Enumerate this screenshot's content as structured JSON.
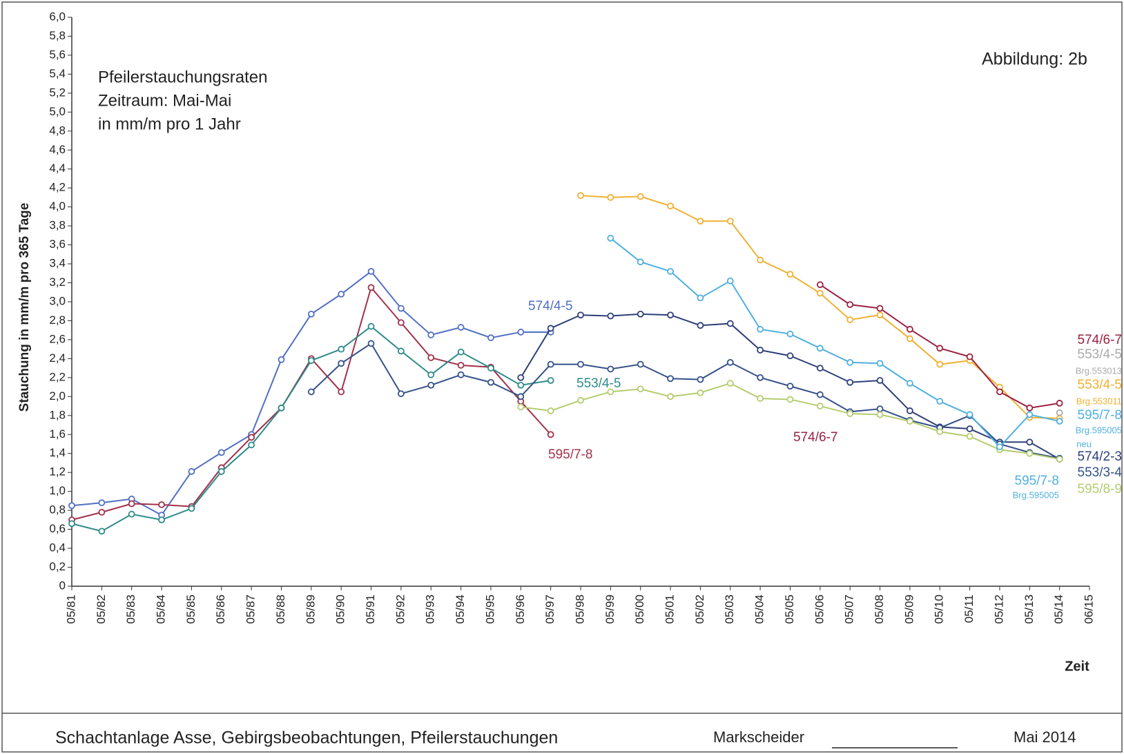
{
  "chart_data": {
    "type": "line",
    "title_lines": [
      "Pfeilerstauchungsraten",
      "Zeitraum: Mai-Mai",
      "in mm/m pro 1 Jahr"
    ],
    "figure_label": "Abbildung:  2b",
    "y_label": "Stauchung in mm/m pro 365 Tage",
    "x_label": "Zeit",
    "categories": [
      "05/81",
      "05/82",
      "05/83",
      "05/84",
      "05/85",
      "05/86",
      "05/87",
      "05/88",
      "05/89",
      "05/90",
      "05/91",
      "05/92",
      "05/93",
      "05/94",
      "05/95",
      "05/96",
      "05/97",
      "05/98",
      "05/99",
      "05/00",
      "05/01",
      "05/02",
      "05/03",
      "05/04",
      "05/05",
      "05/06",
      "05/07",
      "05/08",
      "05/09",
      "05/10",
      "05/11",
      "05/12",
      "05/13",
      "05/14",
      "06/15"
    ],
    "ylim": [
      0,
      6
    ],
    "yticks": [
      0,
      {
        "value": 0.2,
        "label": "0,2"
      },
      {
        "value": 0.4,
        "label": "0,4"
      },
      {
        "value": 0.6,
        "label": "0,6"
      },
      {
        "value": 0.8,
        "label": "0,8"
      },
      {
        "value": 1.0,
        "label": "1,0"
      },
      {
        "value": 1.2,
        "label": "1,2"
      },
      {
        "value": 1.4,
        "label": "1,4"
      },
      {
        "value": 1.6,
        "label": "1,6"
      },
      {
        "value": 1.8,
        "label": "1,8"
      },
      {
        "value": 2.0,
        "label": "2,0"
      },
      {
        "value": 2.2,
        "label": "2,2"
      },
      {
        "value": 2.4,
        "label": "2,4"
      },
      {
        "value": 2.6,
        "label": "2,6"
      },
      {
        "value": 2.8,
        "label": "2,8"
      },
      {
        "value": 3.0,
        "label": "3,0"
      },
      {
        "value": 3.2,
        "label": "3,2"
      },
      {
        "value": 3.4,
        "label": "3,4"
      },
      {
        "value": 3.6,
        "label": "3,6"
      },
      {
        "value": 3.8,
        "label": "3,8"
      },
      {
        "value": 4.0,
        "label": "4,0"
      },
      {
        "value": 4.2,
        "label": "4,2"
      },
      {
        "value": 4.4,
        "label": "4,4"
      },
      {
        "value": 4.6,
        "label": "4,6"
      },
      {
        "value": 4.8,
        "label": "4,8"
      },
      {
        "value": 5.0,
        "label": "5,0"
      },
      {
        "value": 5.2,
        "label": "5,2"
      },
      {
        "value": 5.4,
        "label": "5,4"
      },
      {
        "value": 5.6,
        "label": "5,6"
      },
      {
        "value": 5.8,
        "label": "5,8"
      },
      {
        "value": 6.0,
        "label": "6,0"
      }
    ],
    "series": [
      {
        "color": "#4f6fc4",
        "values": [
          0.85,
          0.88,
          0.92,
          0.75,
          1.21,
          1.41,
          1.6,
          2.39,
          2.87,
          3.08,
          3.32,
          2.93,
          2.65,
          2.73,
          2.62,
          2.68,
          2.68,
          null,
          null,
          null,
          null,
          null,
          null,
          null,
          null,
          null,
          null,
          null,
          null,
          null,
          null,
          null,
          null,
          null,
          null
        ]
      },
      {
        "color": "#a0304a",
        "values": [
          0.7,
          0.78,
          0.87,
          0.86,
          0.84,
          1.25,
          1.57,
          1.88,
          2.4,
          2.05,
          3.15,
          2.78,
          2.41,
          2.33,
          2.31,
          1.95,
          1.6,
          null,
          null,
          null,
          null,
          null,
          null,
          null,
          null,
          null,
          null,
          null,
          null,
          null,
          null,
          null,
          null,
          null,
          null
        ]
      },
      {
        "color": "#2e8a8a",
        "values": [
          0.66,
          0.58,
          0.76,
          0.7,
          0.82,
          1.21,
          1.49,
          1.88,
          2.38,
          2.5,
          2.74,
          2.48,
          2.23,
          2.47,
          2.3,
          2.12,
          2.17,
          null,
          null,
          null,
          null,
          null,
          null,
          null,
          null,
          null,
          null,
          null,
          null,
          null,
          null,
          null,
          null,
          null,
          null
        ]
      },
      {
        "color": "#2e3f78",
        "values": [
          null,
          null,
          null,
          null,
          null,
          null,
          null,
          null,
          null,
          null,
          null,
          null,
          null,
          null,
          null,
          2.2,
          2.72,
          2.86,
          2.85,
          2.87,
          2.86,
          2.75,
          2.77,
          2.49,
          2.43,
          2.3,
          2.15,
          2.17,
          1.85,
          1.68,
          1.66,
          1.52,
          1.52,
          1.34,
          null
        ]
      },
      {
        "color": "#33508a",
        "values": [
          null,
          null,
          null,
          null,
          null,
          null,
          null,
          null,
          2.05,
          2.35,
          2.56,
          2.03,
          2.12,
          2.23,
          2.15,
          2.0,
          2.34,
          2.34,
          2.29,
          2.34,
          2.19,
          2.18,
          2.36,
          2.2,
          2.11,
          2.02,
          1.84,
          1.87,
          1.75,
          1.67,
          1.8,
          1.5,
          1.41,
          1.35,
          null
        ]
      },
      {
        "color": "#b4cc6e",
        "values": [
          null,
          null,
          null,
          null,
          null,
          null,
          null,
          null,
          null,
          null,
          null,
          null,
          null,
          null,
          null,
          1.89,
          1.85,
          1.96,
          2.05,
          2.08,
          2.0,
          2.04,
          2.14,
          1.98,
          1.97,
          1.9,
          1.82,
          1.81,
          1.74,
          1.63,
          1.58,
          1.44,
          1.4,
          1.34,
          null
        ]
      },
      {
        "color": "#f0b030",
        "values": [
          null,
          null,
          null,
          null,
          null,
          null,
          null,
          null,
          null,
          null,
          null,
          null,
          null,
          null,
          null,
          null,
          null,
          4.12,
          4.1,
          4.11,
          4.01,
          3.85,
          3.85,
          3.44,
          3.29,
          3.09,
          2.81,
          2.86,
          2.61,
          2.34,
          2.38,
          2.1,
          1.78,
          1.77,
          null
        ]
      },
      {
        "color": "#4fb0e0",
        "values": [
          null,
          null,
          null,
          null,
          null,
          null,
          null,
          null,
          null,
          null,
          null,
          null,
          null,
          null,
          null,
          null,
          null,
          null,
          3.67,
          3.42,
          3.32,
          3.04,
          3.22,
          2.71,
          2.66,
          2.51,
          2.36,
          2.35,
          2.14,
          1.95,
          1.81,
          1.47,
          1.81,
          1.74,
          null
        ]
      },
      {
        "color": "#9a2040",
        "values": [
          null,
          null,
          null,
          null,
          null,
          null,
          null,
          null,
          null,
          null,
          null,
          null,
          null,
          null,
          null,
          null,
          null,
          null,
          null,
          null,
          null,
          null,
          null,
          null,
          null,
          3.18,
          2.97,
          2.93,
          2.71,
          2.51,
          2.42,
          2.05,
          1.88,
          1.93,
          null
        ]
      },
      {
        "color": "#aaaaaa",
        "values": [
          null,
          null,
          null,
          null,
          null,
          null,
          null,
          null,
          null,
          null,
          null,
          null,
          null,
          null,
          null,
          null,
          null,
          null,
          null,
          null,
          null,
          null,
          null,
          null,
          null,
          null,
          null,
          null,
          null,
          null,
          null,
          null,
          null,
          1.83,
          null
        ]
      }
    ],
    "annotations": [
      {
        "text": "574/4-5",
        "color": "#4f6fc4"
      },
      {
        "text": "553/4-5",
        "color": "#2e8a8a"
      },
      {
        "text": "595/7-8",
        "color": "#a0304a"
      },
      {
        "text": "574/6-7",
        "color": "#9a2040"
      },
      {
        "text": "574/6-7",
        "color": "#9a2040"
      },
      {
        "text": "553/4-5",
        "color": "#aaaaaa"
      },
      {
        "text": "Brg.553013",
        "color": "#aaaaaa"
      },
      {
        "text": "553/4-5",
        "color": "#f0b030"
      },
      {
        "text": "Brg.553011",
        "color": "#f0b030"
      },
      {
        "text": "595/7-8",
        "color": "#4fb0e0"
      },
      {
        "text": "Brg.595005",
        "color": "#4fb0e0"
      },
      {
        "text": "neu",
        "color": "#4fb0e0"
      },
      {
        "text": "574/2-3",
        "color": "#2e3f78"
      },
      {
        "text": "553/3-4",
        "color": "#33508a"
      },
      {
        "text": "595/7-8",
        "color": "#4fb0e0"
      },
      {
        "text": "Brg.595005",
        "color": "#4fb0e0"
      },
      {
        "text": "595/8-9",
        "color": "#b4cc6e"
      }
    ]
  },
  "footer": {
    "title": "Schachtanlage Asse, Gebirgsbeobachtungen, Pfeilerstauchungen",
    "signature": "Markscheider",
    "date": "Mai 2014"
  }
}
